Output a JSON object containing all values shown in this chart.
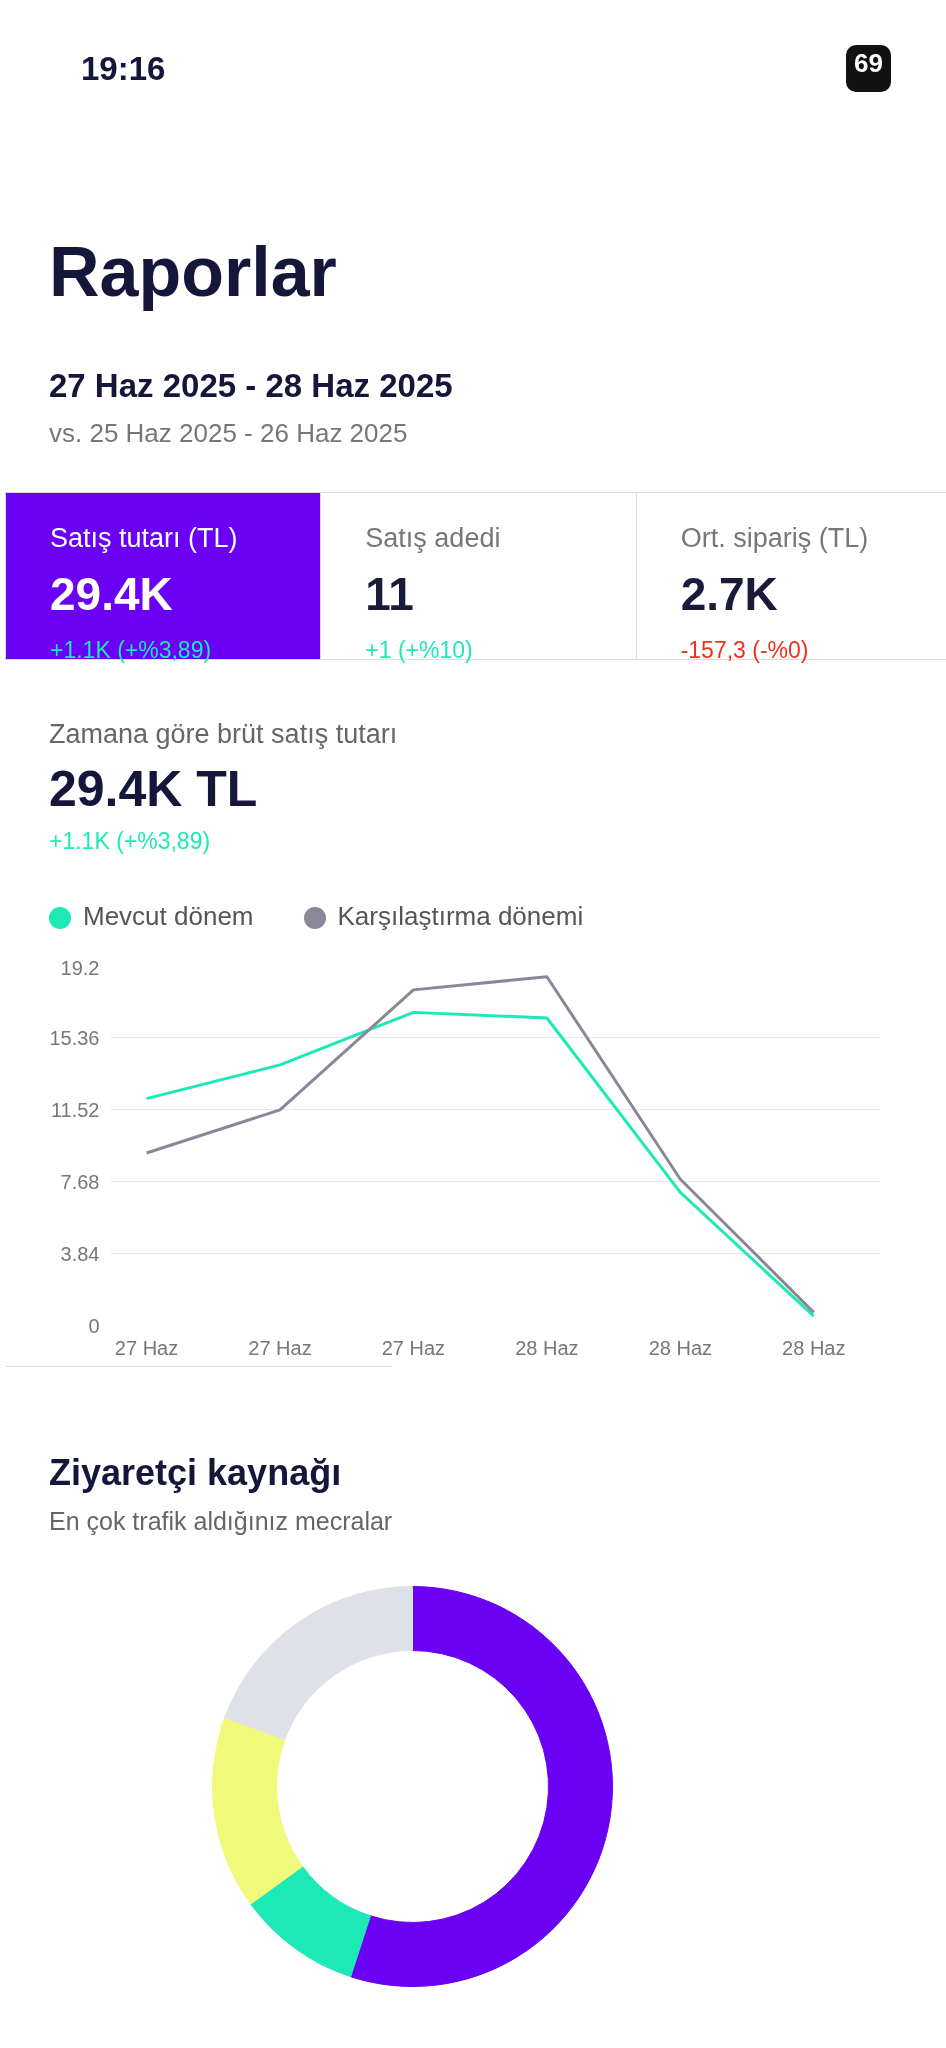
{
  "chart_data": [
    {
      "type": "other",
      "title": "Raporlar",
      "subtitle": "27 Haz 2025 - 28 Haz 2025",
      "annotations": [
        "19:16",
        "69",
        "vs. 25 Haz 2025 - 26 Haz 2025",
        "Satış tutarı (TL)",
        "29.4K",
        "+1.1K (+%3,89)",
        "Satış adedi",
        "11",
        "+1 (+%10)",
        "Ort. sipariş (TL)",
        "2.7K",
        "-157,3 (-%0)"
      ],
      "colors": [
        "#6a00f4",
        "#1de9b6",
        "#f0301e"
      ]
    },
    {
      "type": "line",
      "title": "Zamana göre brüt satış tutarı",
      "subtitle": "29.4K TL",
      "annotations": [
        "+1.1K (+%3,89)"
      ],
      "categories": [
        "27 Haz",
        "27 Haz",
        "27 Haz",
        "28 Haz",
        "28 Haz",
        "28 Haz"
      ],
      "ylim": [
        0,
        19.2
      ],
      "yticks": [
        0,
        3.84,
        7.68,
        11.52,
        15.36,
        19.2
      ],
      "grid": "y",
      "legend": "top left",
      "marker": "none",
      "series": [
        {
          "name": "Mevcut dönem",
          "color": "#1de9b6",
          "values": [
            12.1,
            13.9,
            16.7,
            16.4,
            7.1,
            0.5
          ]
        },
        {
          "name": "Karşılaştırma dönemi",
          "color": "#8a8799",
          "values": [
            9.2,
            11.5,
            17.9,
            18.6,
            7.8,
            0.7
          ]
        }
      ]
    },
    {
      "type": "donut",
      "title": "Ziyaretçi kaynağı",
      "subtitle": "En çok trafik aldığınız mecralar",
      "categories": [
        null,
        null,
        null,
        null
      ],
      "values": [
        55,
        10,
        15.6,
        19.4
      ],
      "colors": [
        "#6a00f4",
        "#1de9b6",
        "#f0f97a",
        "#dfe1e8"
      ]
    }
  ]
}
